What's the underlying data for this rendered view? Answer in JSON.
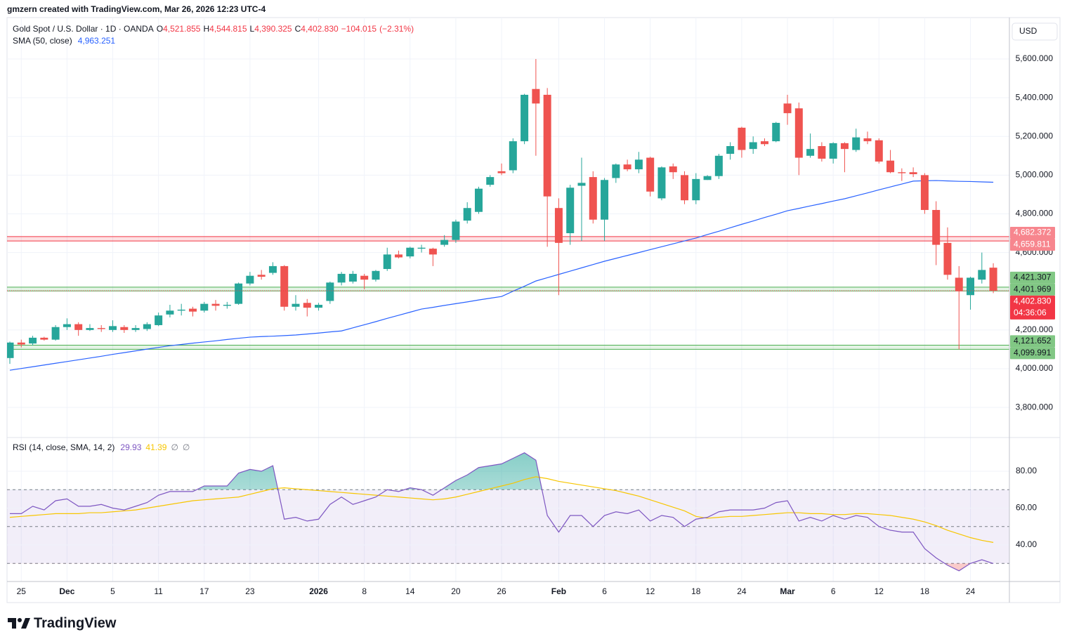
{
  "credit": "gmzern created with TradingView.com, Mar 26, 2026 12:23 UTC-4",
  "brand": "TradingView",
  "chart_data": {
    "type": "candlestick",
    "currency": "USD",
    "legend": {
      "title": "Gold Spot / U.S. Dollar · 1D · OANDA",
      "color": "#f23645",
      "ohlc": [
        {
          "key": "O",
          "value": 4521.855,
          "label": "4,521.855"
        },
        {
          "key": "H",
          "value": 4544.815,
          "label": "4,544.815"
        },
        {
          "key": "L",
          "value": 4390.325,
          "label": "4,390.325"
        },
        {
          "key": "C",
          "value": 4402.83,
          "label": "4,402.830"
        }
      ],
      "change": {
        "value": -104.015,
        "label": "−104.015"
      },
      "change_pct": {
        "value": -2.31,
        "label": "(−2.31%)"
      }
    },
    "up_color": "#26a69a",
    "down_color": "#ef5350",
    "categories": [
      null,
      "25",
      null,
      null,
      null,
      "Dec",
      null,
      null,
      null,
      "5",
      null,
      null,
      null,
      "11",
      null,
      null,
      null,
      "17",
      null,
      null,
      null,
      "23",
      null,
      null,
      null,
      null,
      null,
      "2026",
      null,
      null,
      null,
      "8",
      null,
      null,
      null,
      "14",
      null,
      null,
      null,
      "20",
      null,
      null,
      null,
      "26",
      null,
      null,
      null,
      null,
      "Feb",
      null,
      null,
      null,
      "6",
      null,
      null,
      null,
      "12",
      null,
      null,
      null,
      "18",
      null,
      null,
      null,
      "24",
      null,
      null,
      null,
      "Mar",
      null,
      null,
      null,
      "6",
      null,
      null,
      null,
      "12",
      null,
      null,
      null,
      "18",
      null,
      null,
      null,
      "24",
      null,
      null
    ],
    "candles": [
      [
        4055,
        4140,
        4025,
        4135
      ],
      [
        4135,
        4150,
        4110,
        4125
      ],
      [
        4130,
        4170,
        4120,
        4160
      ],
      [
        4160,
        4165,
        4145,
        4150
      ],
      [
        4150,
        4225,
        4145,
        4215
      ],
      [
        4215,
        4260,
        4200,
        4230
      ],
      [
        4230,
        4240,
        4170,
        4200
      ],
      [
        4200,
        4230,
        4195,
        4210
      ],
      [
        4210,
        4225,
        4190,
        4205
      ],
      [
        4200,
        4250,
        4190,
        4220
      ],
      [
        4215,
        4225,
        4185,
        4200
      ],
      [
        4200,
        4225,
        4190,
        4210
      ],
      [
        4205,
        4240,
        4195,
        4230
      ],
      [
        4225,
        4290,
        4220,
        4275
      ],
      [
        4280,
        4330,
        4265,
        4300
      ],
      [
        4300,
        4335,
        4275,
        4305
      ],
      [
        4310,
        4320,
        4270,
        4295
      ],
      [
        4300,
        4345,
        4290,
        4335
      ],
      [
        4335,
        4355,
        4300,
        4325
      ],
      [
        4325,
        4345,
        4310,
        4330
      ],
      [
        4335,
        4445,
        4330,
        4440
      ],
      [
        4440,
        4500,
        4430,
        4480
      ],
      [
        4485,
        4510,
        4460,
        4475
      ],
      [
        4495,
        4550,
        4485,
        4530
      ],
      [
        4530,
        4535,
        4300,
        4320
      ],
      [
        4320,
        4380,
        4300,
        4335
      ],
      [
        4340,
        4360,
        4270,
        4315
      ],
      [
        4315,
        4340,
        4300,
        4330
      ],
      [
        4350,
        4450,
        4335,
        4445
      ],
      [
        4445,
        4500,
        4430,
        4490
      ],
      [
        4450,
        4505,
        4440,
        4490
      ],
      [
        4480,
        4490,
        4410,
        4460
      ],
      [
        4460,
        4510,
        4450,
        4505
      ],
      [
        4515,
        4625,
        4505,
        4590
      ],
      [
        4590,
        4610,
        4570,
        4575
      ],
      [
        4580,
        4630,
        4570,
        4625
      ],
      [
        4620,
        4640,
        4600,
        4625
      ],
      [
        4620,
        4625,
        4530,
        4590
      ],
      [
        4640,
        4690,
        4630,
        4665
      ],
      [
        4665,
        4770,
        4650,
        4760
      ],
      [
        4765,
        4860,
        4750,
        4830
      ],
      [
        4810,
        4940,
        4800,
        4930
      ],
      [
        4950,
        5000,
        4940,
        4990
      ],
      [
        5020,
        5060,
        5000,
        5010
      ],
      [
        5025,
        5190,
        5010,
        5175
      ],
      [
        5175,
        5420,
        5160,
        5415
      ],
      [
        5445,
        5600,
        5100,
        5370
      ],
      [
        5415,
        5450,
        4630,
        4890
      ],
      [
        4830,
        4880,
        4380,
        4650
      ],
      [
        4700,
        4950,
        4640,
        4935
      ],
      [
        4945,
        5090,
        4660,
        4960
      ],
      [
        4990,
        5020,
        4750,
        4770
      ],
      [
        4770,
        4985,
        4660,
        4975
      ],
      [
        4985,
        5060,
        4960,
        5055
      ],
      [
        5055,
        5080,
        5020,
        5030
      ],
      [
        5030,
        5120,
        5010,
        5080
      ],
      [
        5090,
        5095,
        4890,
        4915
      ],
      [
        4880,
        5045,
        4870,
        5040
      ],
      [
        5045,
        5060,
        4980,
        5015
      ],
      [
        5000,
        5020,
        4850,
        4870
      ],
      [
        4870,
        5010,
        4850,
        4980
      ],
      [
        4975,
        5000,
        4975,
        4995
      ],
      [
        4995,
        5110,
        4980,
        5100
      ],
      [
        5110,
        5170,
        5080,
        5150
      ],
      [
        5245,
        5250,
        5090,
        5130
      ],
      [
        5135,
        5200,
        5110,
        5170
      ],
      [
        5175,
        5190,
        5150,
        5160
      ],
      [
        5175,
        5275,
        5170,
        5270
      ],
      [
        5370,
        5415,
        5260,
        5320
      ],
      [
        5345,
        5375,
        5000,
        5090
      ],
      [
        5100,
        5215,
        5090,
        5135
      ],
      [
        5150,
        5170,
        5070,
        5085
      ],
      [
        5085,
        5170,
        5060,
        5165
      ],
      [
        5165,
        5170,
        5015,
        5135
      ],
      [
        5130,
        5240,
        5120,
        5195
      ],
      [
        5190,
        5225,
        5160,
        5175
      ],
      [
        5180,
        5190,
        5060,
        5070
      ],
      [
        5075,
        5130,
        5010,
        5015
      ],
      [
        5015,
        5035,
        4970,
        5010
      ],
      [
        5015,
        5040,
        4990,
        5005
      ],
      [
        5000,
        5010,
        4800,
        4820
      ],
      [
        4820,
        4865,
        4535,
        4640
      ],
      [
        4650,
        4730,
        4460,
        4485
      ],
      [
        4470,
        4530,
        4100,
        4400
      ],
      [
        4380,
        4475,
        4305,
        4470
      ],
      [
        4460,
        4600,
        4440,
        4510
      ],
      [
        4521.855,
        4544.815,
        4390.325,
        4402.83
      ]
    ],
    "sma": {
      "name": "SMA (50, close)",
      "label": "4,963.251",
      "color": "#2962ff",
      "values": [
        3992,
        4001,
        4010,
        4019,
        4028,
        4037,
        4046,
        4055,
        4064,
        4074,
        4083,
        4092,
        4101,
        4110,
        4119,
        4125,
        4132,
        4138,
        4144,
        4151,
        4157,
        4163,
        4166,
        4168,
        4171,
        4174,
        4179,
        4184,
        4190,
        4195,
        4211,
        4227,
        4243,
        4260,
        4276,
        4292,
        4308,
        4317,
        4327,
        4336,
        4345,
        4355,
        4364,
        4373,
        4400,
        4426,
        4453,
        4470,
        4487,
        4504,
        4521,
        4538,
        4555,
        4570,
        4585,
        4600,
        4615,
        4630,
        4645,
        4660,
        4675,
        4693,
        4710,
        4728,
        4746,
        4763,
        4781,
        4798,
        4816,
        4828,
        4841,
        4853,
        4866,
        4878,
        4893,
        4908,
        4924,
        4939,
        4954,
        4969,
        4971,
        4972,
        4970,
        4968,
        4967,
        4965,
        4963.251
      ]
    },
    "ylim": [
      3648,
      5814
    ],
    "yticks": [
      {
        "value": 3800,
        "label": "3,800.000"
      },
      {
        "value": 4000,
        "label": "4,000.000"
      },
      {
        "value": 4200,
        "label": "4,200.000"
      },
      {
        "value": 4400,
        "label": "4,400.000"
      },
      {
        "value": 4600,
        "label": "4,600.000"
      },
      {
        "value": 4800,
        "label": "4,800.000"
      },
      {
        "value": 5000,
        "label": "5,000.000"
      },
      {
        "value": 5200,
        "label": "5,200.000"
      },
      {
        "value": 5400,
        "label": "5,400.000"
      },
      {
        "value": 5600,
        "label": "5,600.000"
      }
    ],
    "bands": [
      {
        "color": "#f23645",
        "box": "#f7868e",
        "text": "#ffffff",
        "levels": [
          {
            "value": 4682.372,
            "label": "4,682.372"
          },
          {
            "value": 4659.811,
            "label": "4,659.811"
          }
        ]
      },
      {
        "color": "#4caf50",
        "box": "#81c784",
        "text": "#131722",
        "levels": [
          {
            "value": 4421.307,
            "label": "4,421.307"
          },
          {
            "value": 4401.969,
            "label": "4,401.969"
          }
        ]
      },
      {
        "color": "#4caf50",
        "box": "#81c784",
        "text": "#131722",
        "levels": [
          {
            "value": 4121.652,
            "label": "4,121.652"
          },
          {
            "value": 4099.991,
            "label": "4,099.991"
          }
        ]
      }
    ],
    "last": {
      "value": 4402.83,
      "label": "4,402.830",
      "countdown": "04:36:06",
      "color": "#f23645"
    },
    "rsi": {
      "name": "RSI (14, close, SMA, 14, 2)",
      "label": "29.93",
      "color": "#7e57c2",
      "ma_label": "41.39",
      "ma_color": "#f7c600",
      "extras": [
        "∅",
        "∅"
      ],
      "values": [
        57,
        57,
        61,
        59,
        64,
        65,
        61,
        61,
        62,
        60,
        59,
        61,
        63,
        67,
        69,
        69,
        69,
        72,
        72,
        72,
        79,
        81,
        80,
        83,
        54,
        55,
        53,
        54,
        62,
        66,
        62,
        64,
        66,
        70,
        69,
        71,
        70,
        67,
        71,
        75,
        78,
        82,
        83,
        84,
        87,
        90,
        86,
        56,
        47,
        56,
        56,
        50,
        56,
        58,
        57,
        59,
        53,
        56,
        55,
        50,
        54,
        55,
        58,
        59,
        59,
        59,
        60,
        63,
        64,
        53,
        55,
        53,
        56,
        54,
        56,
        55,
        50,
        48,
        47,
        47,
        38,
        33,
        29,
        26,
        30,
        32,
        29.93
      ],
      "ma": [
        55,
        55.5,
        56,
        56.5,
        57,
        57,
        57,
        57.5,
        57.5,
        58,
        58.5,
        59,
        60,
        61,
        62,
        63,
        64,
        64.5,
        65,
        65.5,
        66,
        67.5,
        69,
        70.5,
        71,
        70.5,
        70,
        69.5,
        69,
        68.5,
        68,
        67.5,
        67,
        66.5,
        66,
        65.5,
        65,
        64.5,
        65,
        66,
        67.5,
        69,
        70.5,
        72,
        73.5,
        75.5,
        77,
        76,
        74.5,
        73.5,
        72.5,
        71.5,
        70.5,
        69.5,
        68,
        66.5,
        64.5,
        62.5,
        60.5,
        58.5,
        55.5,
        54.5,
        55,
        55.5,
        55.5,
        56,
        56.5,
        57,
        57.5,
        57.5,
        57,
        57,
        56.5,
        56.5,
        57,
        57,
        56.5,
        56,
        55,
        54,
        52.5,
        50.5,
        48,
        46,
        44,
        42.5,
        41.39
      ],
      "ylim": [
        20.2,
        97.9
      ],
      "yticks": [
        {
          "value": 40,
          "label": "40.00"
        },
        {
          "value": 60,
          "label": "60.00"
        },
        {
          "value": 80,
          "label": "80.00"
        }
      ],
      "bounds": [
        30,
        50,
        70
      ]
    }
  }
}
